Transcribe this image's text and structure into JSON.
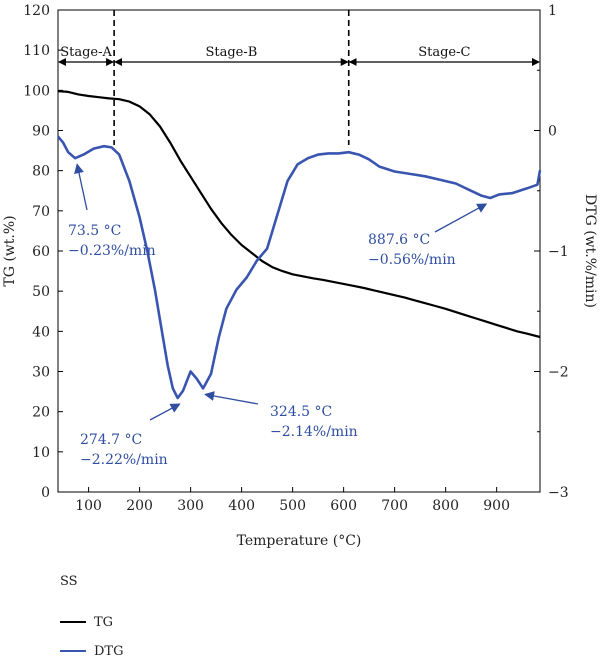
{
  "chart_data": {
    "type": "line",
    "xlabel": "Temperature (°C)",
    "ylabel_left": "TG (wt.%)",
    "ylabel_right": "DTG (wt.%/min)",
    "xlim": [
      40,
      985
    ],
    "ylim_left": [
      0,
      120
    ],
    "ylim_right": [
      -3,
      1
    ],
    "x_ticks": [
      "100",
      "200",
      "300",
      "400",
      "500",
      "600",
      "700",
      "800",
      "900"
    ],
    "y_left_ticks": [
      "0",
      "10",
      "20",
      "30",
      "40",
      "50",
      "60",
      "70",
      "80",
      "90",
      "100",
      "110",
      "120"
    ],
    "y_right_ticks": [
      "1",
      "0",
      "−1",
      "−2",
      "−3"
    ],
    "stages": [
      {
        "label": "Stage-A",
        "from": 40,
        "to": 150
      },
      {
        "label": "Stage-B",
        "from": 150,
        "to": 610
      },
      {
        "label": "Stage-C",
        "from": 610,
        "to": 985
      }
    ],
    "boundaries": [
      150,
      610
    ],
    "legend": {
      "title": "SS",
      "entries": [
        {
          "label": "TG",
          "color": "#000000"
        },
        {
          "label": "DTG",
          "color": "#3a55b0"
        }
      ]
    },
    "series": [
      {
        "name": "TG",
        "axis": "left",
        "color": "#000000",
        "x": [
          40,
          60,
          80,
          100,
          120,
          140,
          160,
          180,
          200,
          220,
          240,
          260,
          280,
          300,
          320,
          340,
          360,
          380,
          400,
          420,
          440,
          460,
          480,
          500,
          520,
          540,
          560,
          580,
          600,
          620,
          640,
          660,
          680,
          700,
          720,
          740,
          760,
          780,
          800,
          820,
          840,
          860,
          880,
          900,
          920,
          940,
          960,
          985
        ],
        "y": [
          99.8,
          99.6,
          99.0,
          98.6,
          98.3,
          98.0,
          97.8,
          97.2,
          96.0,
          94.0,
          91.0,
          87.0,
          82.5,
          78.5,
          74.5,
          70.5,
          67.0,
          64.0,
          61.5,
          59.5,
          57.5,
          56.0,
          55.0,
          54.2,
          53.7,
          53.2,
          52.8,
          52.3,
          51.8,
          51.3,
          50.8,
          50.2,
          49.6,
          49.0,
          48.4,
          47.7,
          47.0,
          46.3,
          45.6,
          44.8,
          44.0,
          43.2,
          42.4,
          41.6,
          40.8,
          40.0,
          39.4,
          38.6
        ]
      },
      {
        "name": "DTG",
        "axis": "right",
        "color": "#3a55b0",
        "x": [
          40,
          50,
          60,
          73.5,
          90,
          110,
          130,
          145,
          160,
          180,
          200,
          215,
          230,
          245,
          255,
          265,
          274.7,
          285,
          300,
          312,
          324.5,
          340,
          355,
          370,
          390,
          410,
          430,
          450,
          470,
          490,
          510,
          530,
          550,
          570,
          590,
          610,
          630,
          650,
          670,
          700,
          730,
          760,
          790,
          820,
          850,
          870,
          887.6,
          905,
          930,
          960,
          980,
          985
        ],
        "y": [
          -0.05,
          -0.1,
          -0.18,
          -0.23,
          -0.2,
          -0.15,
          -0.13,
          -0.14,
          -0.2,
          -0.42,
          -0.72,
          -1.0,
          -1.32,
          -1.7,
          -1.95,
          -2.14,
          -2.22,
          -2.16,
          -2.0,
          -2.06,
          -2.14,
          -2.02,
          -1.72,
          -1.48,
          -1.32,
          -1.22,
          -1.08,
          -0.98,
          -0.7,
          -0.42,
          -0.28,
          -0.23,
          -0.2,
          -0.19,
          -0.19,
          -0.18,
          -0.2,
          -0.24,
          -0.3,
          -0.34,
          -0.36,
          -0.38,
          -0.41,
          -0.44,
          -0.5,
          -0.54,
          -0.56,
          -0.53,
          -0.52,
          -0.48,
          -0.45,
          -0.33
        ]
      }
    ],
    "annotations": [
      {
        "text": "73.5 °C",
        "text2": "−0.23%/min",
        "x": 73.5,
        "series": "DTG"
      },
      {
        "text": "274.7 °C",
        "text2": "−2.22%/min",
        "x": 274.7,
        "series": "DTG"
      },
      {
        "text": "324.5 °C",
        "text2": "−2.14%/min",
        "x": 324.5,
        "series": "DTG"
      },
      {
        "text": "887.6 °C",
        "text2": "−0.56%/min",
        "x": 887.6,
        "series": "DTG"
      }
    ]
  }
}
